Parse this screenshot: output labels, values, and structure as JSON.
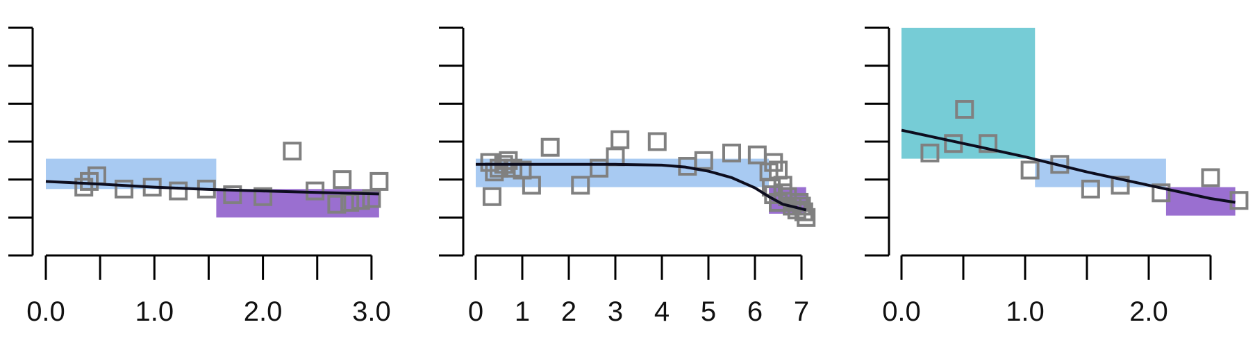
{
  "chart_data": [
    {
      "type": "scatter",
      "title": "",
      "xlabel": "",
      "ylabel": "",
      "xlim": [
        0,
        3.0
      ],
      "ylim": [
        0,
        6
      ],
      "x_ticks": [
        0,
        0.5,
        1.0,
        1.5,
        2.0,
        2.5,
        3.0
      ],
      "x_tick_labels": [
        "0.0",
        "",
        "1.0",
        "",
        "2.0",
        "",
        "3.0"
      ],
      "y_ticks": [
        0,
        1,
        2,
        3,
        4,
        5,
        6
      ],
      "bands": [
        {
          "x0": 0,
          "x1": 1.57,
          "y0": 1.75,
          "y1": 2.55,
          "color": "#a8caf2"
        },
        {
          "x0": 1.57,
          "x1": 3.07,
          "y0": 1.0,
          "y1": 1.75,
          "color": "#9a6fd0"
        }
      ],
      "trend": [
        [
          0,
          1.95
        ],
        [
          0.5,
          1.88
        ],
        [
          1.0,
          1.8
        ],
        [
          1.5,
          1.74
        ],
        [
          2.0,
          1.7
        ],
        [
          2.5,
          1.66
        ],
        [
          3.07,
          1.62
        ]
      ],
      "points": [
        [
          0.35,
          1.8
        ],
        [
          0.4,
          1.95
        ],
        [
          0.47,
          2.1
        ],
        [
          0.72,
          1.75
        ],
        [
          0.98,
          1.8
        ],
        [
          1.22,
          1.7
        ],
        [
          1.48,
          1.75
        ],
        [
          1.72,
          1.6
        ],
        [
          2.0,
          1.55
        ],
        [
          2.27,
          2.75
        ],
        [
          2.48,
          1.7
        ],
        [
          2.73,
          2.0
        ],
        [
          2.68,
          1.35
        ],
        [
          2.8,
          1.4
        ],
        [
          2.9,
          1.45
        ],
        [
          3.0,
          1.5
        ],
        [
          3.07,
          1.95
        ]
      ]
    },
    {
      "type": "scatter",
      "title": "",
      "xlabel": "",
      "ylabel": "",
      "xlim": [
        0,
        7
      ],
      "ylim": [
        0,
        6
      ],
      "x_ticks": [
        0,
        1,
        2,
        3,
        4,
        5,
        6,
        7
      ],
      "x_tick_labels": [
        "0",
        "1",
        "2",
        "3",
        "4",
        "5",
        "6",
        "7"
      ],
      "y_ticks": [
        0,
        1,
        2,
        3,
        4,
        5,
        6
      ],
      "bands": [
        {
          "x0": 0,
          "x1": 6.3,
          "y0": 1.8,
          "y1": 2.55,
          "color": "#a8caf2"
        },
        {
          "x0": 6.3,
          "x1": 7.1,
          "y0": 1.1,
          "y1": 1.8,
          "color": "#9a6fd0"
        }
      ],
      "trend": [
        [
          0,
          2.4
        ],
        [
          1,
          2.4
        ],
        [
          2,
          2.4
        ],
        [
          3,
          2.4
        ],
        [
          4,
          2.38
        ],
        [
          4.5,
          2.33
        ],
        [
          5,
          2.22
        ],
        [
          5.5,
          2.05
        ],
        [
          6.0,
          1.78
        ],
        [
          6.3,
          1.55
        ],
        [
          6.6,
          1.35
        ],
        [
          7.1,
          1.2
        ]
      ],
      "points": [
        [
          0.3,
          2.45
        ],
        [
          0.4,
          2.2
        ],
        [
          0.5,
          2.3
        ],
        [
          0.6,
          2.4
        ],
        [
          0.7,
          2.5
        ],
        [
          0.8,
          2.3
        ],
        [
          1.0,
          2.25
        ],
        [
          1.2,
          1.85
        ],
        [
          0.35,
          1.55
        ],
        [
          1.6,
          2.85
        ],
        [
          2.25,
          1.85
        ],
        [
          2.65,
          2.3
        ],
        [
          3.0,
          2.6
        ],
        [
          3.1,
          3.05
        ],
        [
          3.9,
          3.0
        ],
        [
          4.55,
          2.35
        ],
        [
          4.9,
          2.5
        ],
        [
          5.5,
          2.7
        ],
        [
          6.05,
          2.65
        ],
        [
          6.3,
          2.2
        ],
        [
          6.4,
          2.45
        ],
        [
          6.5,
          2.25
        ],
        [
          6.35,
          1.8
        ],
        [
          6.4,
          1.6
        ],
        [
          6.5,
          1.4
        ],
        [
          6.6,
          1.65
        ],
        [
          6.8,
          1.3
        ],
        [
          6.9,
          1.2
        ],
        [
          6.95,
          1.4
        ],
        [
          7.0,
          1.3
        ],
        [
          7.05,
          1.15
        ],
        [
          7.1,
          1.0
        ],
        [
          6.6,
          1.85
        ],
        [
          6.7,
          1.55
        ]
      ]
    },
    {
      "type": "scatter",
      "title": "",
      "xlabel": "",
      "ylabel": "",
      "xlim": [
        0,
        2.7
      ],
      "ylim": [
        0,
        6
      ],
      "x_ticks": [
        0,
        0.5,
        1.0,
        1.5,
        2.0,
        2.5
      ],
      "x_tick_labels": [
        "0.0",
        "",
        "1.0",
        "",
        "2.0",
        ""
      ],
      "y_ticks": [
        0,
        1,
        2,
        3,
        4,
        5,
        6
      ],
      "bands": [
        {
          "x0": 0,
          "x1": 1.08,
          "y0": 2.55,
          "y1": 6.0,
          "color": "#76ccd6"
        },
        {
          "x0": 1.08,
          "x1": 2.14,
          "y0": 1.8,
          "y1": 2.55,
          "color": "#a8caf2"
        },
        {
          "x0": 2.14,
          "x1": 2.7,
          "y0": 1.05,
          "y1": 1.8,
          "color": "#9a6fd0"
        }
      ],
      "trend": [
        [
          0,
          3.3
        ],
        [
          0.5,
          2.95
        ],
        [
          1.0,
          2.6
        ],
        [
          1.5,
          2.2
        ],
        [
          2.0,
          1.85
        ],
        [
          2.5,
          1.5
        ],
        [
          2.7,
          1.4
        ]
      ],
      "points": [
        [
          0.23,
          2.7
        ],
        [
          0.42,
          2.95
        ],
        [
          0.51,
          3.85
        ],
        [
          0.7,
          2.95
        ],
        [
          1.04,
          2.25
        ],
        [
          1.28,
          2.4
        ],
        [
          1.53,
          1.75
        ],
        [
          1.77,
          1.85
        ],
        [
          2.1,
          1.65
        ],
        [
          2.5,
          2.05
        ],
        [
          2.73,
          1.45
        ]
      ]
    }
  ]
}
